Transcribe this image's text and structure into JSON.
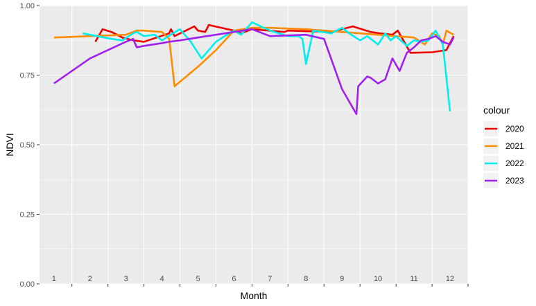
{
  "chart_data": {
    "type": "line",
    "xlabel": "Month",
    "ylabel": "NDVI",
    "xlim": [
      0.6,
      12.5
    ],
    "ylim": [
      0,
      1
    ],
    "x_tick_labels": [
      "1",
      "2",
      "3",
      "4",
      "5",
      "6",
      "7",
      "8",
      "9",
      "10",
      "11",
      "12"
    ],
    "y_ticks": [
      0,
      0.25,
      0.5,
      0.75,
      1
    ],
    "y_tick_labels": [
      "0.00",
      "0.25",
      "0.50",
      "0.75",
      "1.00"
    ],
    "legend_title": "colour",
    "legend_position": "right",
    "grid": true,
    "series": [
      {
        "name": "2020",
        "color": "#ee0000",
        "x": [
          2.15,
          2.35,
          2.6,
          2.9,
          3.2,
          3.5,
          4.2,
          4.25,
          4.35,
          4.9,
          5.0,
          5.2,
          5.3,
          6.0,
          6.2,
          6.5,
          7.4,
          7.5,
          8.7,
          9.3,
          9.8,
          10.05,
          10.4,
          10.55,
          10.9,
          11.5,
          11.7,
          11.9,
          12.1
        ],
        "y": [
          0.87,
          0.915,
          0.905,
          0.885,
          0.875,
          0.87,
          0.9,
          0.915,
          0.89,
          0.925,
          0.91,
          0.905,
          0.93,
          0.91,
          0.9,
          0.915,
          0.905,
          0.91,
          0.905,
          0.925,
          0.905,
          0.9,
          0.895,
          0.91,
          0.83,
          0.832,
          0.836,
          0.84,
          0.89
        ]
      },
      {
        "name": "2021",
        "color": "#ff8c00",
        "x": [
          1.0,
          2.0,
          3.0,
          3.3,
          3.5,
          4.0,
          4.2,
          4.35,
          5.0,
          5.5,
          6.0,
          6.5,
          7.0,
          8.0,
          8.5,
          9.0,
          9.5,
          10.0,
          10.5,
          11.0,
          11.3,
          11.5,
          11.6,
          11.7,
          11.8,
          11.9,
          12.1
        ],
        "y": [
          0.885,
          0.89,
          0.895,
          0.91,
          0.91,
          0.905,
          0.88,
          0.71,
          0.78,
          0.84,
          0.91,
          0.92,
          0.92,
          0.915,
          0.91,
          0.905,
          0.9,
          0.895,
          0.89,
          0.885,
          0.86,
          0.9,
          0.895,
          0.89,
          0.86,
          0.91,
          0.895
        ]
      },
      {
        "name": "2022",
        "color": "#00eeee",
        "x": [
          1.8,
          2.2,
          2.6,
          2.9,
          3.2,
          3.3,
          3.5,
          3.8,
          4.0,
          4.3,
          4.5,
          4.8,
          5.1,
          5.5,
          5.8,
          6.0,
          6.2,
          6.5,
          7.0,
          7.5,
          7.8,
          7.9,
          8.0,
          8.2,
          8.7,
          9.0,
          9.2,
          9.5,
          9.7,
          10.0,
          10.2,
          10.35,
          10.5,
          10.8,
          11.0,
          11.2,
          11.4,
          11.6,
          11.8,
          12.0
        ],
        "y": [
          0.9,
          0.89,
          0.88,
          0.875,
          0.9,
          0.905,
          0.89,
          0.895,
          0.875,
          0.9,
          0.915,
          0.87,
          0.81,
          0.87,
          0.895,
          0.91,
          0.895,
          0.94,
          0.91,
          0.89,
          0.89,
          0.88,
          0.79,
          0.91,
          0.9,
          0.92,
          0.9,
          0.875,
          0.89,
          0.86,
          0.9,
          0.875,
          0.89,
          0.855,
          0.875,
          0.87,
          0.875,
          0.91,
          0.86,
          0.62
        ]
      },
      {
        "name": "2023",
        "color": "#a020f0",
        "x": [
          1.0,
          2.0,
          2.5,
          3.0,
          3.2,
          3.3,
          3.5,
          4.0,
          4.2,
          4.5,
          5.0,
          6.0,
          6.5,
          7.0,
          8.0,
          8.5,
          9.0,
          9.4,
          9.45,
          9.7,
          9.8,
          10.0,
          10.2,
          10.4,
          10.6,
          10.8,
          11.0,
          11.2,
          11.4,
          11.6,
          11.8,
          12.0,
          12.1
        ],
        "y": [
          0.72,
          0.81,
          0.84,
          0.87,
          0.88,
          0.85,
          0.855,
          0.865,
          0.87,
          0.875,
          0.885,
          0.905,
          0.915,
          0.89,
          0.895,
          0.88,
          0.7,
          0.61,
          0.71,
          0.745,
          0.74,
          0.72,
          0.735,
          0.81,
          0.765,
          0.83,
          0.85,
          0.875,
          0.88,
          0.89,
          0.87,
          0.86,
          0.885
        ]
      }
    ]
  }
}
